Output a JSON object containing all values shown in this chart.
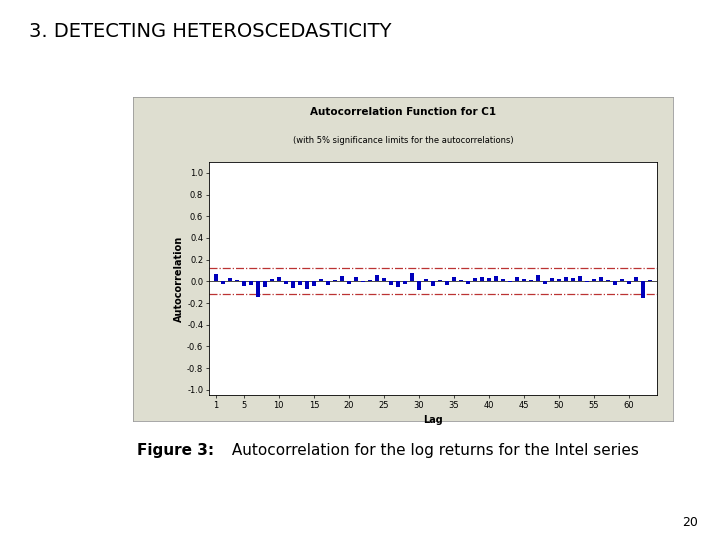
{
  "title": "3. DETECTING HETEROSCEDASTICITY",
  "figure_caption_bold": "Figure 3:",
  "figure_caption_regular": " Autocorrelation for the log returns for the Intel series",
  "page_number": "20",
  "chart_title": "Autocorrelation Function for C1",
  "chart_subtitle": "(with 5% significance limits for the autocorrelations)",
  "xlabel": "Lag",
  "ylabel": "Autocorrelation",
  "ylim": [
    -1.05,
    1.1
  ],
  "xlim": [
    0,
    64
  ],
  "yticks": [
    -1.0,
    -0.8,
    -0.6,
    -0.4,
    -0.2,
    0.0,
    0.2,
    0.4,
    0.6,
    0.8,
    1.0
  ],
  "xticks": [
    1,
    5,
    10,
    15,
    20,
    25,
    30,
    35,
    40,
    45,
    50,
    55,
    60
  ],
  "confidence_level": 0.12,
  "bar_color": "#0000BB",
  "conf_line_color": "#BB3333",
  "panel_bg_color": "#DEDED0",
  "plot_bg_color": "#FFFFFF",
  "outer_bg_color": "#FFFFFF",
  "acf_values": [
    0.07,
    -0.02,
    0.03,
    0.01,
    -0.04,
    -0.03,
    -0.14,
    -0.05,
    0.02,
    0.04,
    -0.02,
    -0.06,
    -0.03,
    -0.07,
    -0.04,
    0.02,
    -0.03,
    0.01,
    0.05,
    -0.02,
    0.04,
    -0.01,
    0.01,
    0.06,
    0.03,
    -0.03,
    -0.05,
    -0.02,
    0.08,
    -0.08,
    0.02,
    -0.04,
    0.01,
    -0.03,
    0.04,
    0.01,
    -0.02,
    0.03,
    0.04,
    0.03,
    0.05,
    0.02,
    -0.01,
    0.04,
    0.02,
    0.01,
    0.06,
    -0.02,
    0.03,
    0.02,
    0.04,
    0.03,
    0.05,
    -0.01,
    0.02,
    0.04,
    0.01,
    -0.03,
    0.02,
    -0.02,
    0.04,
    -0.15,
    0.01
  ]
}
